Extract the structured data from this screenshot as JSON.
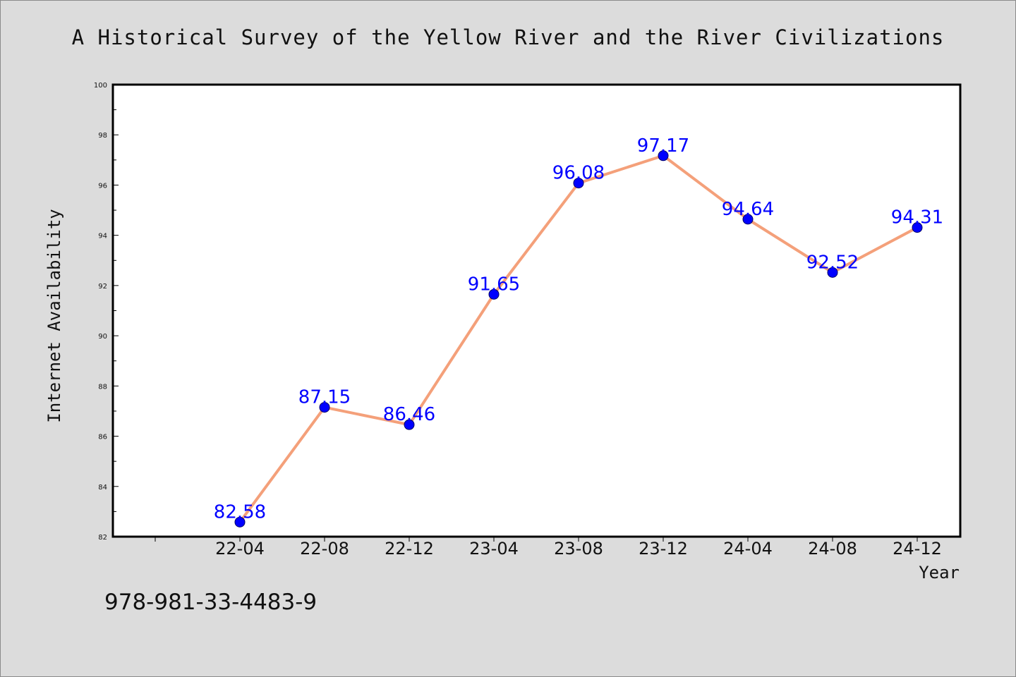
{
  "chart_data": {
    "type": "line",
    "title": "A Historical Survey of the Yellow River and the River Civilizations",
    "xlabel": "Year",
    "ylabel": "Internet Availability",
    "categories": [
      "22-04",
      "22-08",
      "22-12",
      "23-04",
      "23-08",
      "23-12",
      "24-04",
      "24-08",
      "24-12"
    ],
    "series": [
      {
        "values": [
          82.58,
          87.15,
          86.46,
          91.65,
          96.08,
          97.17,
          94.64,
          92.52,
          94.31
        ],
        "labels": [
          "82.58",
          "87.15",
          "86.46",
          "91.65",
          "96.08",
          "97.17",
          "94.64",
          "92.52",
          "94.31"
        ],
        "line_color": "#f4a07a",
        "marker_color": "#0000ff"
      }
    ],
    "ylim": [
      82,
      100
    ],
    "yticks": [
      82,
      84,
      86,
      88,
      90,
      92,
      94,
      96,
      98,
      100
    ],
    "grid": false,
    "legend": "none"
  },
  "footer": {
    "isbn": "978-981-33-4483-9"
  }
}
